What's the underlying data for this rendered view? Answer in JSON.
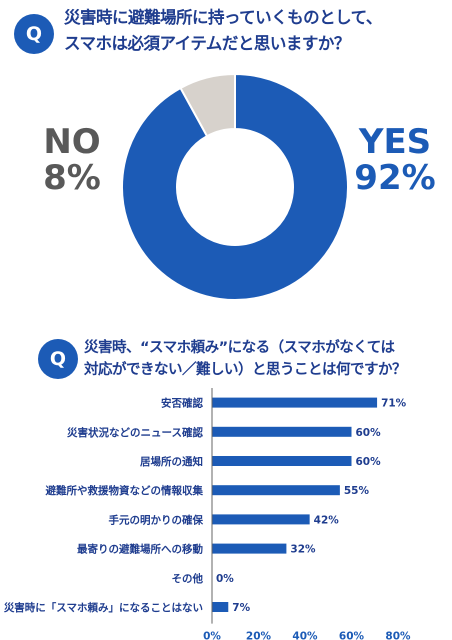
{
  "q_marker": "Q",
  "q1": {
    "question": "災害時に避難場所に持っていくものとして、\nスマホは必須アイテムだと思いますか？"
  },
  "q2": {
    "question": "災害時、“スマホ頼み”になる（スマホがなくては\n対応ができない／難しい）と思うことは何ですか？"
  },
  "colors": {
    "blue": "#1c5bb6",
    "grey_slice": "#d7d2cc",
    "text_navy": "#1f3d8f",
    "no_text": "#595959"
  },
  "chart_data": [
    {
      "type": "pie",
      "donut": true,
      "slices": [
        {
          "label": "YES",
          "display": "92%",
          "value": 92,
          "color": "#1c5bb6"
        },
        {
          "label": "NO",
          "display": "8%",
          "value": 8,
          "color": "#d7d2cc"
        }
      ]
    },
    {
      "type": "bar",
      "orientation": "horizontal",
      "categories": [
        "安否確認",
        "災害状況などのニュース確認",
        "居場所の通知",
        "避難所や救援物資などの情報収集",
        "手元の明かりの確保",
        "最寄りの避難場所への移動",
        "その他",
        "災害時に「スマホ頼み」になることはない"
      ],
      "values": [
        71,
        60,
        60,
        55,
        42,
        32,
        0,
        7
      ],
      "value_labels": [
        "71%",
        "60%",
        "60%",
        "55%",
        "42%",
        "32%",
        "0%",
        "7%"
      ],
      "xlim": [
        0,
        80
      ],
      "xticks": [
        "0%",
        "20%",
        "40%",
        "60%",
        "80%"
      ],
      "grid": false,
      "bar_color": "#1c5bb6"
    }
  ]
}
